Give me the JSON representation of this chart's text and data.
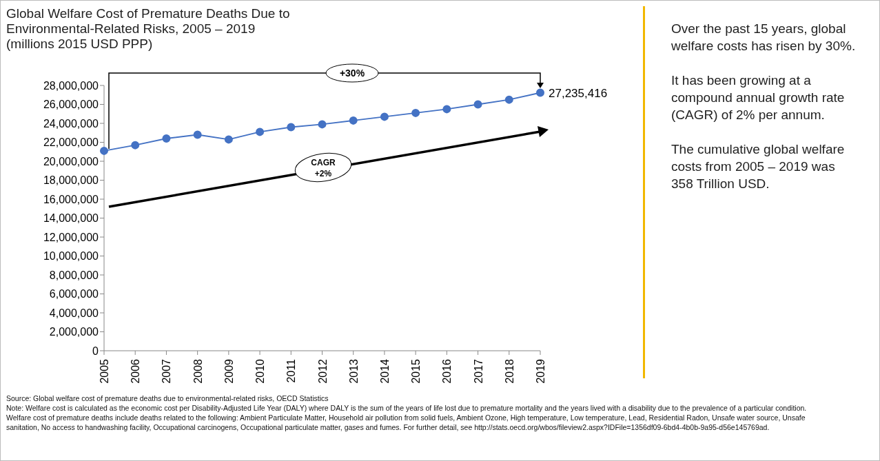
{
  "chart_data": {
    "type": "line",
    "title": "Global Welfare Cost of Premature Deaths Due to Environmental-Related Risks, 2005 – 2019",
    "subtitle": "(millions 2015 USD PPP)",
    "categories": [
      "2005",
      "2006",
      "2007",
      "2008",
      "2009",
      "2010",
      "2011",
      "2012",
      "2013",
      "2014",
      "2015",
      "2016",
      "2017",
      "2018",
      "2019"
    ],
    "series": [
      {
        "color": "#4472c4",
        "values": [
          21100000,
          21700000,
          22400000,
          22800000,
          22300000,
          23100000,
          23600000,
          23900000,
          24300000,
          24700000,
          25100000,
          25500000,
          26000000,
          26500000,
          27235416
        ],
        "value_labels": [
          null,
          null,
          null,
          null,
          null,
          null,
          null,
          null,
          null,
          null,
          null,
          null,
          null,
          null,
          "27,235,416"
        ]
      }
    ],
    "ylim": [
      0,
      28000000
    ],
    "yticks": [
      0,
      {
        "value": 2000000,
        "label": "2,000,000"
      },
      {
        "value": 4000000,
        "label": "4,000,000"
      },
      {
        "value": 6000000,
        "label": "6,000,000"
      },
      {
        "value": 8000000,
        "label": "8,000,000"
      },
      {
        "value": 10000000,
        "label": "10,000,000"
      },
      {
        "value": 12000000,
        "label": "12,000,000"
      },
      {
        "value": 14000000,
        "label": "14,000,000"
      },
      {
        "value": 16000000,
        "label": "16,000,000"
      },
      {
        "value": 18000000,
        "label": "18,000,000"
      },
      {
        "value": 20000000,
        "label": "20,000,000"
      },
      {
        "value": 22000000,
        "label": "22,000,000"
      },
      {
        "value": 24000000,
        "label": "24,000,000"
      },
      {
        "value": 26000000,
        "label": "26,000,000"
      },
      {
        "value": 28000000,
        "label": "28,000,000"
      }
    ],
    "grid": false,
    "legend": false,
    "marker": "circle",
    "line_style": "solid",
    "annotations": [
      "+30%",
      "CAGR +2%",
      "Over the past 15 years, global welfare costs has risen by 30%.",
      "It has been growing at a compound annual growth rate (CAGR) of 2% per annum.",
      "The cumulative global welfare costs from 2005 – 2019 was 358 Trillion USD.",
      "Source: Global welfare cost of premature deaths due to environmental-related risks, OECD Statistics",
      "Note: Welfare cost is calculated as the economic cost per Disability-Adjusted Life Year (DALY) where DALY is the sum of the years of life lost due to premature mortality and the years lived with a disability due to the prevalence of a particular condition. Welfare cost of premature deaths include deaths related to the following: Ambient Particulate Matter, Household air pollution from solid fuels, Ambient Ozone, High temperature, Low temperature, Lead, Residential Radon, Unsafe water source, Unsafe sanitation, No access to handwashing facility, Occupational carcinogens, Occupational particulate matter, gases and fumes. For further detail, see http://stats.oecd.org/wbos/fileview2.aspx?IDFile=1356df09-6bd4-4b0b-9a95-d56e145769ad."
    ]
  }
}
